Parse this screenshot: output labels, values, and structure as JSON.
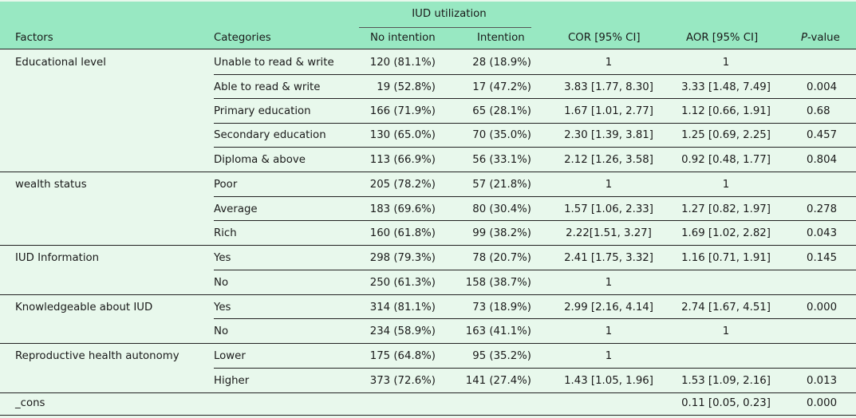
{
  "table": {
    "span_header": "IUD utilization",
    "headers": {
      "factors": "Factors",
      "categories": "Categories",
      "no_intention": "No intention",
      "intention": "Intention",
      "cor": "COR [95% CI]",
      "aor": "AOR [95% CI]",
      "p_italic": "P",
      "p_rest": "-value"
    },
    "groups": [
      {
        "factor": "Educational level",
        "rows": [
          {
            "category": "Unable to read & write",
            "no_intention": "120 (81.1%)",
            "intention": "28 (18.9%)",
            "cor": "1",
            "aor": "1",
            "p": ""
          },
          {
            "category": "Able to read & write",
            "no_intention": "19 (52.8%)",
            "intention": "17 (47.2%)",
            "cor": "3.83 [1.77, 8.30]",
            "aor": "3.33 [1.48, 7.49]",
            "p": "0.004"
          },
          {
            "category": "Primary education",
            "no_intention": "166 (71.9%)",
            "intention": "65 (28.1%)",
            "cor": "1.67 [1.01, 2.77]",
            "aor": "1.12 [0.66, 1.91]",
            "p": "0.68"
          },
          {
            "category": "Secondary education",
            "no_intention": "130 (65.0%)",
            "intention": "70 (35.0%)",
            "cor": "2.30 [1.39, 3.81]",
            "aor": "1.25 [0.69, 2.25]",
            "p": "0.457"
          },
          {
            "category": "Diploma & above",
            "no_intention": "113 (66.9%)",
            "intention": "56 (33.1%)",
            "cor": "2.12 [1.26, 3.58]",
            "aor": "0.92 [0.48, 1.77]",
            "p": "0.804"
          }
        ]
      },
      {
        "factor": "wealth status",
        "rows": [
          {
            "category": "Poor",
            "no_intention": "205 (78.2%)",
            "intention": "57 (21.8%)",
            "cor": "1",
            "aor": "1",
            "p": ""
          },
          {
            "category": "Average",
            "no_intention": "183 (69.6%)",
            "intention": "80 (30.4%)",
            "cor": "1.57 [1.06, 2.33]",
            "aor": "1.27 [0.82, 1.97]",
            "p": "0.278"
          },
          {
            "category": "Rich",
            "no_intention": "160 (61.8%)",
            "intention": "99 (38.2%)",
            "cor": "2.22[1.51, 3.27]",
            "aor": "1.69 [1.02, 2.82]",
            "p": "0.043"
          }
        ]
      },
      {
        "factor": "IUD Information",
        "rows": [
          {
            "category": "Yes",
            "no_intention": "298 (79.3%)",
            "intention": "78 (20.7%)",
            "cor": "2.41 [1.75, 3.32]",
            "aor": "1.16 [0.71, 1.91]",
            "p": "0.145"
          },
          {
            "category": "No",
            "no_intention": "250 (61.3%)",
            "intention": "158 (38.7%)",
            "cor": "1",
            "aor": "",
            "p": ""
          }
        ]
      },
      {
        "factor": "Knowledgeable about IUD",
        "rows": [
          {
            "category": "Yes",
            "no_intention": "314 (81.1%)",
            "intention": "73 (18.9%)",
            "cor": "2.99 [2.16, 4.14]",
            "aor": "2.74 [1.67, 4.51]",
            "p": "0.000"
          },
          {
            "category": "No",
            "no_intention": "234 (58.9%)",
            "intention": "163 (41.1%)",
            "cor": "1",
            "aor": "1",
            "p": ""
          }
        ]
      },
      {
        "factor": "Reproductive health autonomy",
        "rows": [
          {
            "category": "Lower",
            "no_intention": "175 (64.8%)",
            "intention": "95 (35.2%)",
            "cor": "1",
            "aor": "",
            "p": ""
          },
          {
            "category": "Higher",
            "no_intention": "373 (72.6%)",
            "intention": "141 (27.4%)",
            "cor": "1.43 [1.05, 1.96]",
            "aor": "1.53 [1.09, 2.16]",
            "p": "0.013"
          }
        ]
      }
    ],
    "cons": {
      "factor": "_cons",
      "aor": "0.11 [0.05, 0.23]",
      "p": "0.000"
    }
  }
}
